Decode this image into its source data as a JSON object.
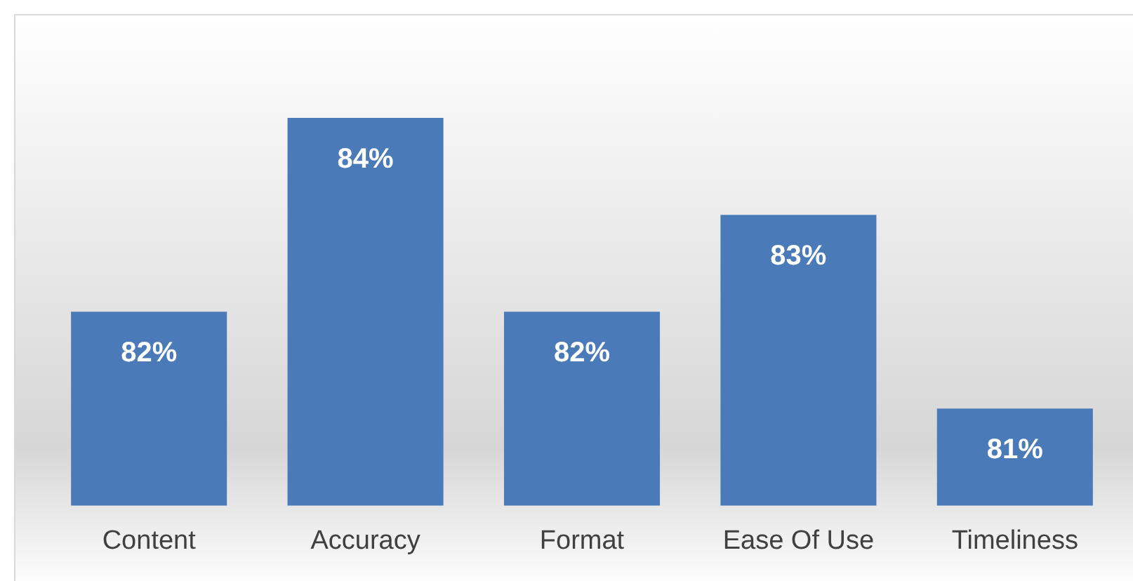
{
  "chart_data": {
    "type": "bar",
    "categories": [
      "Content",
      "Accuracy",
      "Format",
      "Ease Of Use",
      "Timeliness"
    ],
    "values": [
      82,
      84,
      82,
      83,
      81
    ],
    "value_labels": [
      "82%",
      "84%",
      "82%",
      "83%",
      "81%"
    ],
    "color": "#4a7ab8",
    "tick_labels": "x",
    "grid": false,
    "legend": false
  }
}
